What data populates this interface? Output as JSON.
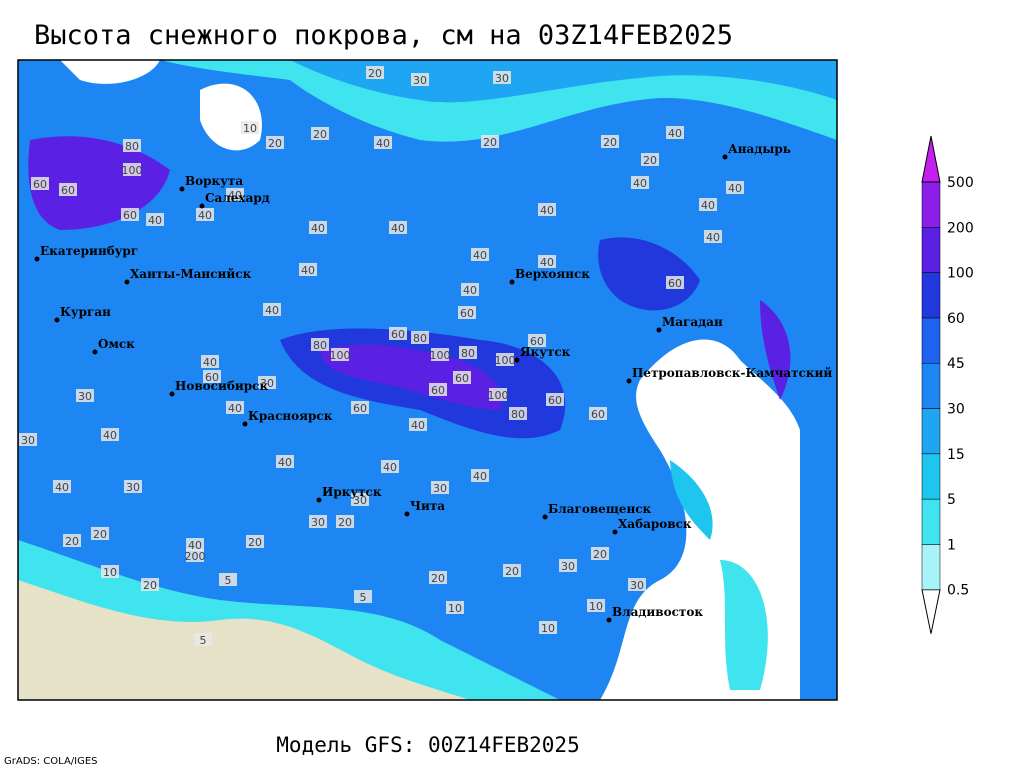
{
  "title": "Высота снежного покрова, см на 03Z14FEB2025",
  "footer": "Модель GFS: 00Z14FEB2025",
  "credit": "GrADS: COLA/IGES",
  "cities": [
    "Воркута",
    "Салехард",
    "Екатеринбург",
    "Ханты-Мансийск",
    "Курган",
    "Омск",
    "Новосибирск",
    "Красноярск",
    "Иркутск",
    "Чита",
    "Благовещенск",
    "Хабаровск",
    "Владивосток",
    "Якутск",
    "Верхоянск",
    "Магадан",
    "Петропавловск-Камчатский",
    "Анадырь"
  ],
  "contour_labels": [
    20,
    30,
    30,
    10,
    20,
    20,
    40,
    20,
    20,
    80,
    100,
    60,
    60,
    60,
    40,
    40,
    40,
    40,
    40,
    40,
    40,
    40,
    40,
    60,
    60,
    80,
    80,
    100,
    100,
    80,
    100,
    60,
    60,
    100,
    80,
    60,
    60,
    60,
    60,
    40,
    40,
    40,
    40,
    60,
    30,
    40,
    30,
    30,
    40,
    40,
    40,
    40,
    30,
    30,
    30,
    20,
    20,
    40,
    200,
    20,
    20,
    10,
    20,
    5,
    5,
    20,
    20,
    30,
    20,
    30,
    10,
    10,
    10,
    5,
    40,
    40,
    40,
    60,
    40,
    40,
    20,
    40,
    30
  ],
  "colorbar": {
    "levels": [
      0.5,
      1,
      5,
      15,
      30,
      45,
      60,
      100,
      200,
      500
    ],
    "colors": [
      "#ffffff",
      "#a8f2fa",
      "#40e4ee",
      "#1cc6ef",
      "#1ea6f2",
      "#1e86f2",
      "#1e62f0",
      "#2038dc",
      "#5a20e4",
      "#8c1ee8",
      "#c41ef0"
    ]
  }
}
